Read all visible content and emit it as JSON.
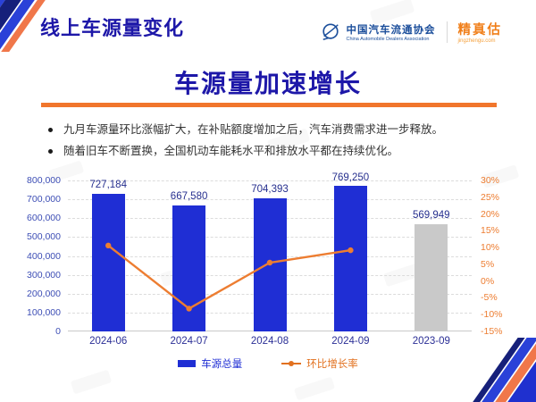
{
  "header": {
    "title": "线上车源量变化",
    "logo": {
      "org_cn": "中国汽车流通协会",
      "org_en": "China Automobile Dealers Association",
      "brand": "精真估",
      "brand_site": "jingzhengu.com"
    }
  },
  "main": {
    "headline": "车源量加速增长",
    "bullets": [
      "九月车源量环比涨幅扩大，在补贴额度增加之后，汽车消费需求进一步释放。",
      "随着旧车不断置换，全国机动车能耗水平和排放水平都在持续优化。"
    ]
  },
  "chart_data": {
    "type": "bar",
    "title": "",
    "xlabel": "",
    "ylabel_left": "",
    "ylabel_right": "",
    "categories": [
      "2024-06",
      "2024-07",
      "2024-08",
      "2024-09",
      "2023-09"
    ],
    "series": [
      {
        "name": "车源总量",
        "type": "bar",
        "values": [
          727184,
          667580,
          704393,
          769250,
          569949
        ],
        "data_labels": [
          "727,184",
          "667,580",
          "704,393",
          "769,250",
          "569,949"
        ],
        "bar_colors": [
          "#1f2ed4",
          "#1f2ed4",
          "#1f2ed4",
          "#1f2ed4",
          "#c9c9c9"
        ]
      },
      {
        "name": "环比增长率",
        "type": "line",
        "values": [
          10.6,
          -8.2,
          5.5,
          9.2,
          null
        ],
        "color": "#ed7d31"
      }
    ],
    "left_axis": {
      "min": 0,
      "max": 800000,
      "step": 100000,
      "tick_labels": [
        "0",
        "100,000",
        "200,000",
        "300,000",
        "400,000",
        "500,000",
        "600,000",
        "700,000",
        "800,000"
      ]
    },
    "right_axis": {
      "min": -15,
      "max": 30,
      "step": 5,
      "tick_labels": [
        "-15%",
        "-10%",
        "-5%",
        "0%",
        "5%",
        "10%",
        "15%",
        "20%",
        "25%",
        "30%"
      ]
    },
    "legend": [
      {
        "label": "车源总量",
        "color": "#1f2ed4",
        "marker": "bar"
      },
      {
        "label": "环比增长率",
        "color": "#e2711f",
        "marker": "line"
      }
    ],
    "grid": true,
    "legend_position": "bottom"
  },
  "colors": {
    "title_blue": "#1d17a8",
    "accent_orange": "#f1762c",
    "bar_blue": "#1f2ed4",
    "bar_gray": "#c9c9c9",
    "line_orange": "#ed7d31"
  }
}
